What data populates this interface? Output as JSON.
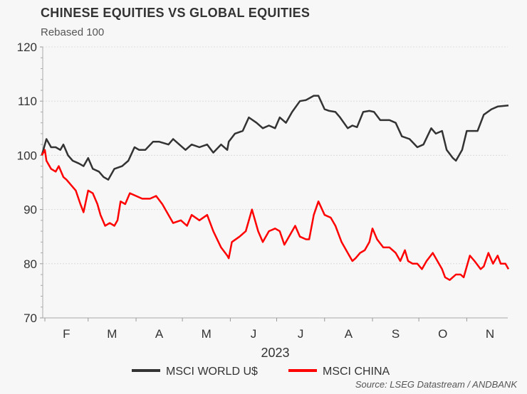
{
  "chart_data": {
    "type": "line",
    "title": "CHINESE EQUITIES VS GLOBAL EQUITIES",
    "subtitle": "Rebased 100",
    "xlabel": "2023",
    "ylabel": "",
    "ylim": [
      70,
      120
    ],
    "yticks": [
      70,
      80,
      90,
      100,
      110,
      120
    ],
    "x_unit": "day of year 2023",
    "xlim": [
      30,
      332
    ],
    "month_ticks": [
      {
        "label": "F",
        "start": 32,
        "end": 60
      },
      {
        "label": "M",
        "start": 60,
        "end": 91
      },
      {
        "label": "A",
        "start": 91,
        "end": 121
      },
      {
        "label": "M",
        "start": 121,
        "end": 152
      },
      {
        "label": "J",
        "start": 152,
        "end": 182
      },
      {
        "label": "J",
        "start": 182,
        "end": 213
      },
      {
        "label": "A",
        "start": 213,
        "end": 244
      },
      {
        "label": "S",
        "start": 244,
        "end": 274
      },
      {
        "label": "O",
        "start": 274,
        "end": 305
      },
      {
        "label": "N",
        "start": 305,
        "end": 335
      }
    ],
    "grid": true,
    "legend_position": "bottom",
    "series": [
      {
        "name": "MSCI WORLD U$",
        "color": "#333333",
        "x": [
          30,
          33,
          36,
          39,
          42,
          44,
          47,
          50,
          54,
          57,
          60,
          63,
          67,
          70,
          73,
          77,
          82,
          86,
          90,
          93,
          97,
          102,
          106,
          112,
          115,
          119,
          123,
          127,
          132,
          137,
          141,
          146,
          150,
          151,
          155,
          160,
          164,
          169,
          173,
          177,
          181,
          184,
          188,
          192,
          197,
          201,
          206,
          209,
          213,
          216,
          220,
          223,
          228,
          231,
          234,
          238,
          242,
          245,
          249,
          255,
          259,
          263,
          268,
          273,
          277,
          282,
          285,
          289,
          292,
          296,
          298,
          302,
          305,
          309,
          312,
          316,
          321,
          325,
          332
        ],
        "values": [
          100,
          103,
          101.5,
          101.5,
          101,
          102,
          100,
          99,
          98.5,
          98,
          99.5,
          97.5,
          97,
          96,
          95.5,
          97.5,
          98,
          99,
          101.5,
          101,
          101,
          102.5,
          102.5,
          102,
          103,
          102,
          101,
          102,
          101.5,
          102,
          100.5,
          102,
          101,
          102.5,
          104,
          104.5,
          107,
          106,
          105,
          105.5,
          105,
          107,
          106,
          108,
          110,
          110.2,
          111,
          111,
          108.5,
          108.2,
          108,
          107,
          105,
          105.5,
          105.2,
          108,
          108.2,
          108,
          106.5,
          106.5,
          106,
          103.5,
          103,
          101.5,
          102,
          105,
          104,
          104.5,
          101,
          99.5,
          99,
          101,
          104.5,
          104.5,
          104.5,
          107.5,
          108.5,
          109,
          109.2
        ]
      },
      {
        "name": "MSCI CHINA",
        "color": "#ff0000",
        "x": [
          30,
          32,
          33,
          36,
          39,
          41,
          44,
          46,
          49,
          52,
          55,
          57,
          60,
          63,
          66,
          68,
          71,
          74,
          77,
          79,
          81,
          84,
          87,
          91,
          95,
          100,
          104,
          108,
          112,
          115,
          120,
          124,
          127,
          132,
          137,
          141,
          146,
          150,
          151,
          153,
          158,
          162,
          166,
          170,
          173,
          177,
          181,
          184,
          187,
          191,
          194,
          197,
          201,
          203,
          206,
          209,
          213,
          217,
          220,
          224,
          228,
          231,
          233,
          236,
          239,
          242,
          244,
          247,
          251,
          255,
          259,
          262,
          265,
          267,
          270,
          273,
          276,
          279,
          283,
          286,
          289,
          291,
          294,
          298,
          301,
          303,
          307,
          310,
          314,
          316,
          319,
          322,
          325,
          327,
          330,
          332
        ],
        "values": [
          100,
          101,
          99,
          97.5,
          97,
          98,
          96,
          95.5,
          94.5,
          93.5,
          91,
          89.5,
          93.5,
          93,
          91,
          89,
          87,
          87.5,
          87,
          88,
          91.5,
          91,
          93,
          92.5,
          92,
          92,
          92.5,
          91,
          89,
          87.5,
          88,
          87,
          89,
          88,
          89,
          86,
          83,
          81.5,
          81,
          84,
          85,
          86,
          90,
          86,
          84,
          86,
          86.5,
          86,
          83.5,
          85.5,
          87,
          85,
          84.5,
          84.5,
          89,
          91.5,
          89,
          88.5,
          87,
          84,
          82,
          80.5,
          81,
          82,
          82.5,
          84,
          86.5,
          84.5,
          83,
          83,
          82,
          80.5,
          82.5,
          80.5,
          80,
          80,
          79,
          80.5,
          82,
          80.5,
          79,
          77.5,
          77,
          78,
          78,
          77.5,
          81.5,
          80.5,
          79,
          79.5,
          82,
          80,
          81.5,
          80,
          80,
          79
        ]
      }
    ]
  },
  "source": "Source: LSEG Datastream / ANDBANK"
}
